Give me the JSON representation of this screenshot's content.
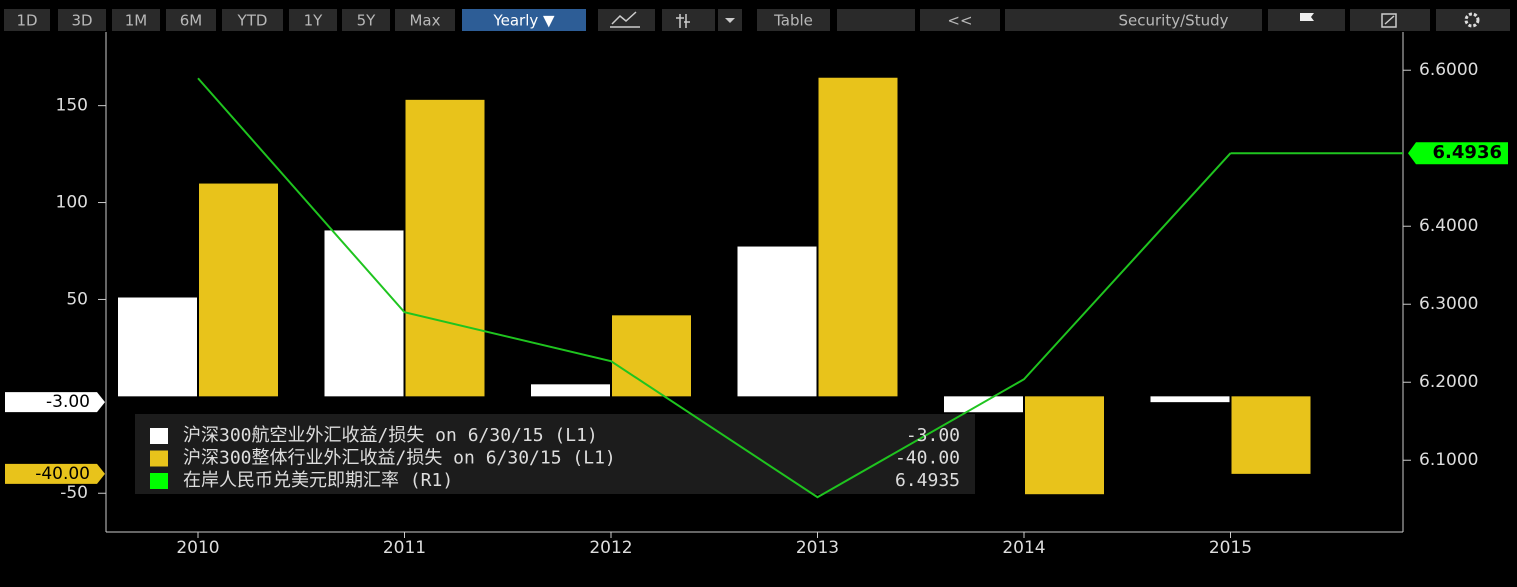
{
  "toolbar": [
    "1D",
    "3D",
    "1M",
    "6M",
    "YTD",
    "1Y",
    "5Y",
    "Max",
    "Yearly ▼",
    "Table",
    "<<",
    "Security/Study"
  ],
  "chart_data": {
    "type": "bar",
    "categories": [
      "2010",
      "2011",
      "2012",
      "2013",
      "2014",
      "2015"
    ],
    "ylim": [
      -70,
      188
    ],
    "yticks": [
      -50,
      50,
      100,
      150
    ],
    "y2lim": [
      6.008,
      6.649
    ],
    "y2ticks": [
      {
        "value": 6.1,
        "label": "6.1000"
      },
      {
        "value": 6.2,
        "label": "6.2000"
      },
      {
        "value": 6.3,
        "label": "6.3000"
      },
      {
        "value": 6.4,
        "label": "6.4000"
      },
      {
        "value": 6.6,
        "label": "6.6000"
      }
    ],
    "series": [
      {
        "name": "沪深300航空业外汇收益/损失 on 6/30/15 (L1)",
        "color": "#ffffff",
        "values": [
          51,
          85.6,
          6.2,
          77.3,
          -8.2,
          -3
        ],
        "current": {
          "value": -3,
          "label": "-3.00"
        }
      },
      {
        "name": "沪深300整体行业外汇收益/损失 on 6/30/15 (L1)",
        "color": "#e8c31b",
        "values": [
          109.8,
          153,
          41.8,
          164.4,
          -50.5,
          -40
        ],
        "current": {
          "value": -40,
          "label": "-40.00"
        }
      },
      {
        "name": "在岸人民币兑美元即期汇率 (R1)",
        "type": "line",
        "axis": "y2",
        "color": "#1fc41f",
        "values": [
          6.5897,
          6.2897,
          6.227,
          6.0526,
          6.2038,
          6.4936
        ],
        "current": {
          "value": 6.4935,
          "label": "6.4935"
        },
        "marker": {
          "value": 6.4936,
          "label": "6.4936"
        }
      }
    ]
  }
}
